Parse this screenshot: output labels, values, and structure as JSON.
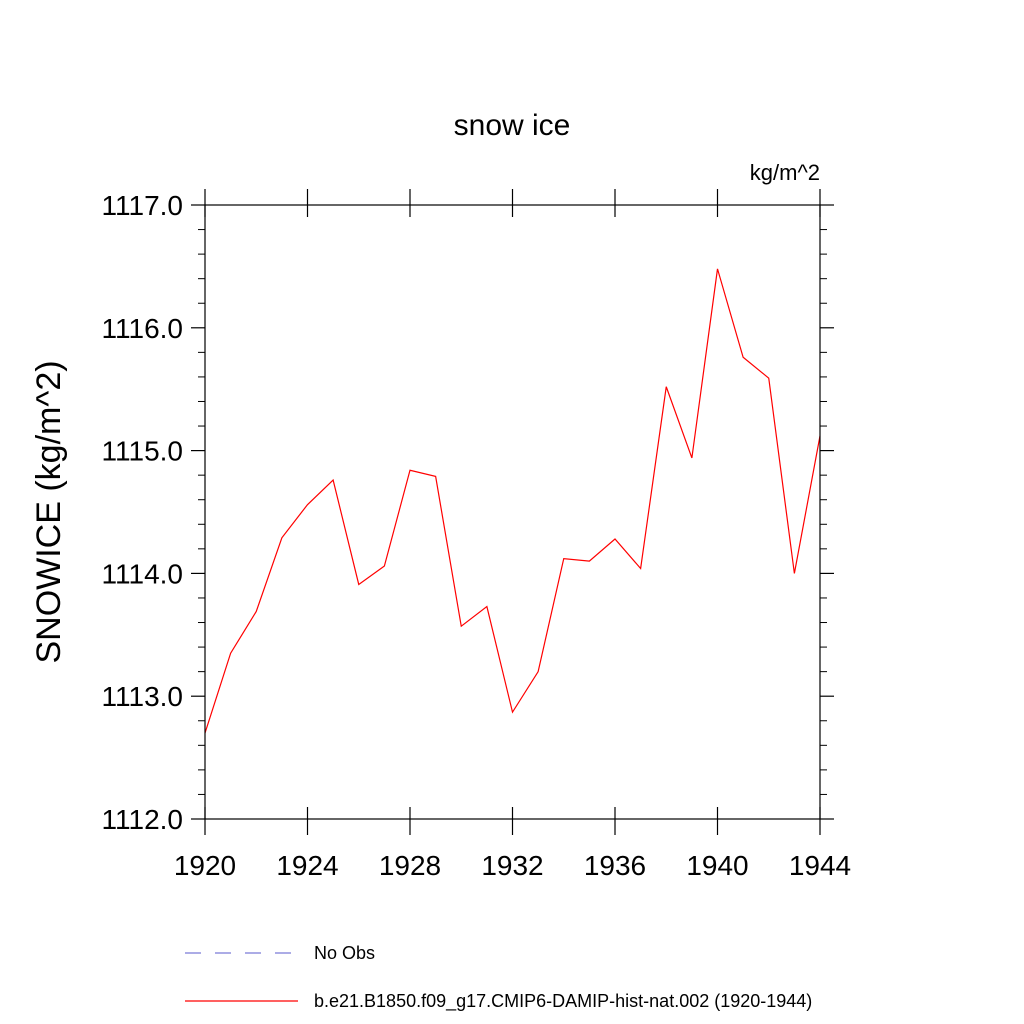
{
  "chart_data": {
    "type": "line",
    "title": "snow ice",
    "units": "kg/m^2",
    "xlabel": "",
    "ylabel": "SNOWICE  (kg/m^2)",
    "xlim": [
      1920,
      1944
    ],
    "ylim": [
      1112.0,
      1117.0
    ],
    "x_ticks": [
      1920,
      1924,
      1928,
      1932,
      1936,
      1940,
      1944
    ],
    "y_ticks": [
      1112.0,
      1113.0,
      1114.0,
      1115.0,
      1116.0,
      1117.0
    ],
    "x_tick_labels": [
      "1920",
      "1924",
      "1928",
      "1932",
      "1936",
      "1940",
      "1944"
    ],
    "y_tick_labels": [
      "1112.0",
      "1113.0",
      "1114.0",
      "1115.0",
      "1116.0",
      "1117.0"
    ],
    "grid": false,
    "legend_position": "bottom",
    "series": [
      {
        "name": "No Obs",
        "color": "#7b7bd6",
        "dashed": true,
        "x": [],
        "y": []
      },
      {
        "name": "b.e21.B1850.f09_g17.CMIP6-DAMIP-hist-nat.002 (1920-1944)",
        "color": "#ff0000",
        "dashed": false,
        "x": [
          1920,
          1921,
          1922,
          1923,
          1924,
          1925,
          1926,
          1927,
          1928,
          1929,
          1930,
          1931,
          1932,
          1933,
          1934,
          1935,
          1936,
          1937,
          1938,
          1939,
          1940,
          1941,
          1942,
          1943,
          1944
        ],
        "y": [
          1112.7,
          1113.35,
          1113.69,
          1114.29,
          1114.56,
          1114.76,
          1113.91,
          1114.06,
          1114.84,
          1114.79,
          1113.57,
          1113.73,
          1112.87,
          1113.2,
          1114.12,
          1114.1,
          1114.28,
          1114.04,
          1115.52,
          1114.94,
          1116.48,
          1115.76,
          1115.59,
          1114.0,
          1115.12
        ]
      }
    ]
  }
}
